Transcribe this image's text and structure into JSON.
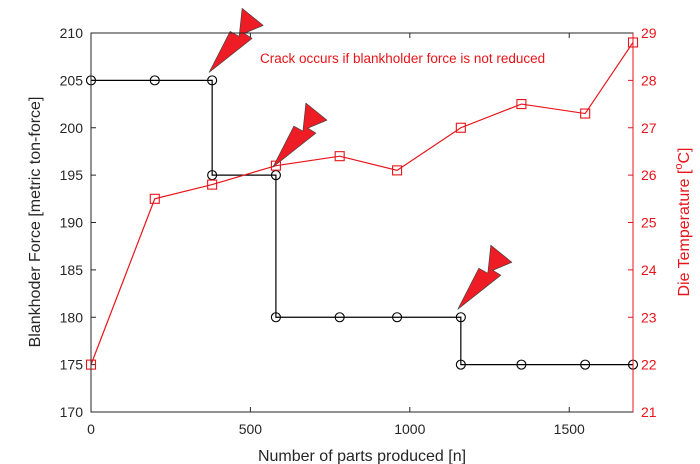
{
  "chart_data": {
    "type": "line",
    "annotation": "Crack occurs if blankholder force is not reduced",
    "x_axis": {
      "label": "Number of parts produced [n]",
      "range": [
        0,
        1700
      ],
      "ticks": [
        0,
        500,
        1000,
        1500
      ]
    },
    "y_left_axis": {
      "label": "Blankhoder Force [metric ton-force]",
      "range": [
        170,
        210
      ],
      "ticks": [
        170,
        175,
        180,
        185,
        190,
        195,
        200,
        205,
        210
      ]
    },
    "y_right_axis": {
      "label_main": "Die Temperature [",
      "label_sup": "o",
      "label_end": "C]",
      "range": [
        21,
        29
      ],
      "ticks": [
        21,
        22,
        23,
        24,
        25,
        26,
        27,
        28,
        29
      ]
    },
    "series": [
      {
        "axis": "left",
        "color": "#000000",
        "marker": "circle",
        "step": true,
        "points": [
          {
            "x": 0,
            "y": 205
          },
          {
            "x": 200,
            "y": 205
          },
          {
            "x": 380,
            "y": 205
          },
          {
            "x": 380,
            "y": 195
          },
          {
            "x": 580,
            "y": 195
          },
          {
            "x": 580,
            "y": 180
          },
          {
            "x": 780,
            "y": 180
          },
          {
            "x": 960,
            "y": 180
          },
          {
            "x": 1160,
            "y": 180
          },
          {
            "x": 1160,
            "y": 175
          },
          {
            "x": 1350,
            "y": 175
          },
          {
            "x": 1550,
            "y": 175
          },
          {
            "x": 1700,
            "y": 175
          }
        ]
      },
      {
        "axis": "right",
        "color": "#e8141a",
        "marker": "square",
        "step": false,
        "points": [
          {
            "x": 0,
            "y": 22.0
          },
          {
            "x": 200,
            "y": 25.5
          },
          {
            "x": 380,
            "y": 25.8
          },
          {
            "x": 580,
            "y": 26.2
          },
          {
            "x": 780,
            "y": 26.4
          },
          {
            "x": 960,
            "y": 26.1
          },
          {
            "x": 1160,
            "y": 27.0
          },
          {
            "x": 1350,
            "y": 27.5
          },
          {
            "x": 1550,
            "y": 27.3
          },
          {
            "x": 1700,
            "y": 28.8
          }
        ]
      }
    ],
    "crack_markers": [
      {
        "x": 380,
        "y": 205
      },
      {
        "x": 580,
        "y": 195
      },
      {
        "x": 1160,
        "y": 180
      }
    ],
    "colors": {
      "left": "#000000",
      "right": "#e8141a",
      "bolt": "#ee1c24"
    }
  }
}
